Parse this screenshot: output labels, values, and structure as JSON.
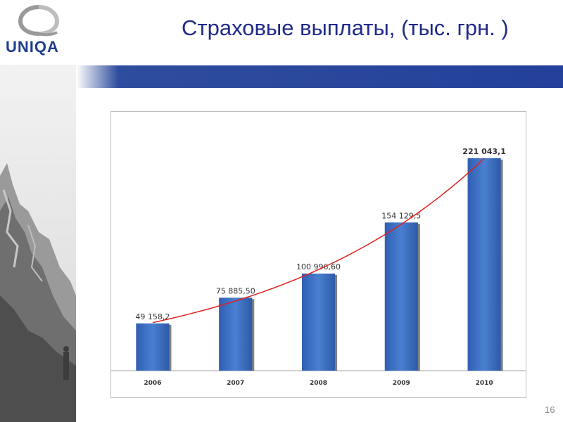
{
  "header": {
    "title": "Страховые выплаты, (тыс. грн. )",
    "logo_text": "UNIQA"
  },
  "colors": {
    "accent_band": "#23409a",
    "bar_fill": "#3a6cc0",
    "trend_line": "#e02020",
    "title_text": "#1f2a8a"
  },
  "footer": {
    "page_number": "16"
  },
  "chart_data": {
    "type": "bar",
    "title": "",
    "xlabel": "",
    "ylabel": "",
    "categories": [
      "2006",
      "2007",
      "2008",
      "2009",
      "2010"
    ],
    "values": [
      49158.2,
      75885.5,
      100996.6,
      154129.5,
      221043.1
    ],
    "value_labels": [
      "49 158,2",
      "75 885,50",
      "100 996,60",
      "154 129,5",
      "221 043,1"
    ],
    "ylim": [
      0,
      240000
    ],
    "grid": false,
    "legend": "none",
    "trendline": "exponential"
  }
}
